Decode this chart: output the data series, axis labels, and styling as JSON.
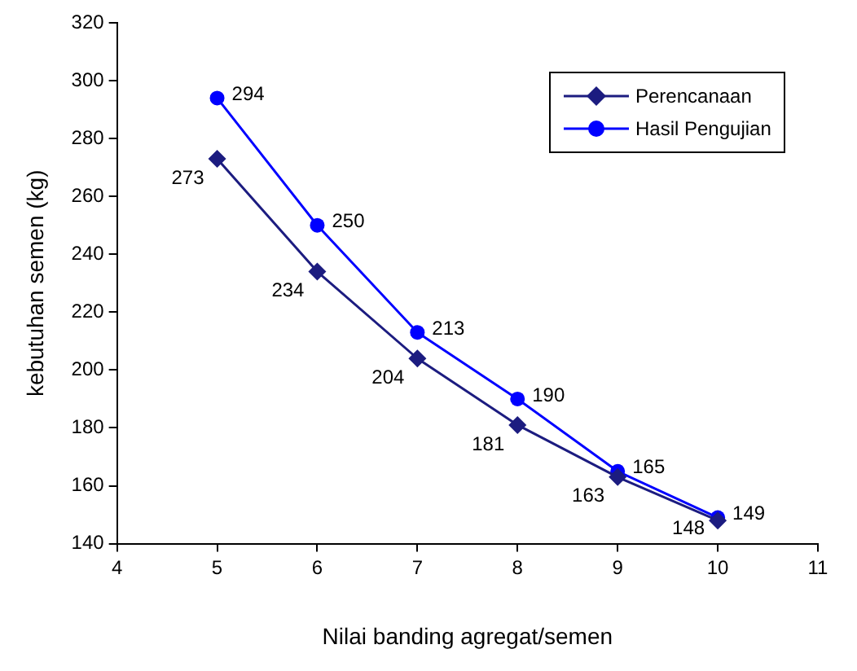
{
  "chart_data": {
    "type": "line",
    "xlabel": "Nilai banding agregat/semen",
    "ylabel": "kebutuhan semen (kg)",
    "x": [
      5,
      6,
      7,
      8,
      9,
      10
    ],
    "series": [
      {
        "name": "Perencanaan",
        "color": "#1c1c80",
        "values": [
          273,
          234,
          204,
          181,
          163,
          148
        ],
        "marker": "diamond"
      },
      {
        "name": "Hasil Pengujian",
        "color": "#0000ff",
        "values": [
          294,
          250,
          213,
          190,
          165,
          149
        ],
        "marker": "circle"
      }
    ],
    "xlim": [
      4,
      11
    ],
    "xticks": [
      4,
      5,
      6,
      7,
      8,
      9,
      10,
      11
    ],
    "ylim": [
      140,
      320
    ],
    "yticks": [
      140,
      160,
      180,
      200,
      220,
      240,
      260,
      280,
      300,
      320
    ],
    "grid": false,
    "legend": "top right",
    "data_labels": true,
    "line_style": "solid"
  }
}
